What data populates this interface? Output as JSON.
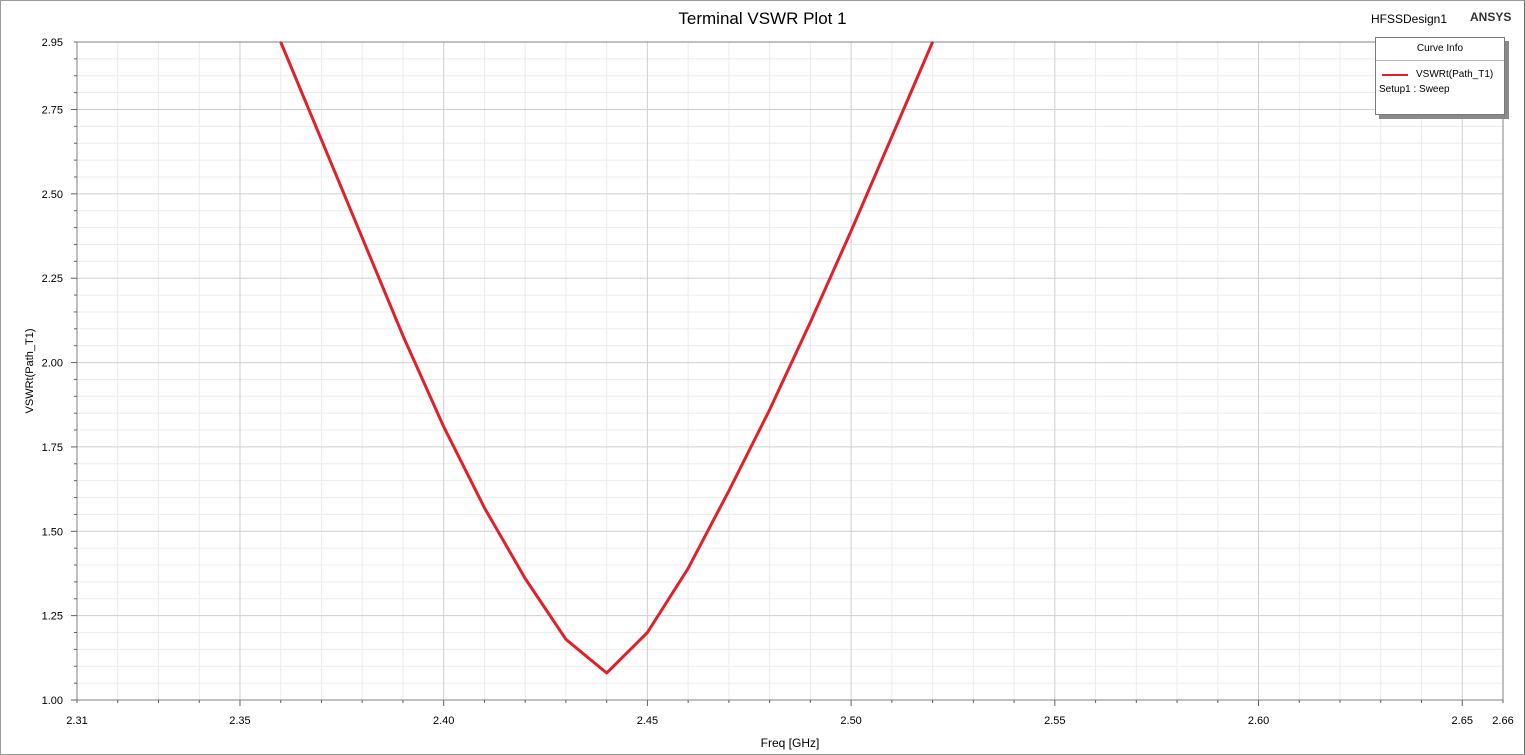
{
  "header": {
    "title": "Terminal VSWR Plot 1",
    "design_name": "HFSSDesign1",
    "brand": "ANSYS"
  },
  "legend": {
    "title": "Curve Info",
    "series_name": "VSWRt(Path_T1)",
    "setup": "Setup1 : Sweep"
  },
  "chart_data": {
    "type": "line",
    "title": "Terminal VSWR Plot 1",
    "xlabel": "Freq [GHz]",
    "ylabel": "VSWRt(Path_T1)",
    "xlim": [
      2.31,
      2.66
    ],
    "ylim": [
      1.0,
      2.95
    ],
    "x_ticks": [
      "2.31",
      "2.35",
      "2.40",
      "2.45",
      "2.50",
      "2.55",
      "2.60",
      "2.65",
      "2.66"
    ],
    "y_ticks": [
      "1.00",
      "1.25",
      "1.50",
      "1.75",
      "2.00",
      "2.25",
      "2.50",
      "2.75",
      "2.95"
    ],
    "grid": true,
    "legend_position": "top-right",
    "series": [
      {
        "name": "VSWRt(Path_T1)",
        "color": "#e0202a",
        "x": [
          2.36,
          2.37,
          2.38,
          2.39,
          2.4,
          2.41,
          2.42,
          2.43,
          2.44,
          2.45,
          2.46,
          2.47,
          2.48,
          2.49,
          2.5,
          2.51,
          2.52
        ],
        "y": [
          2.95,
          2.66,
          2.37,
          2.08,
          1.81,
          1.57,
          1.36,
          1.18,
          1.08,
          1.2,
          1.39,
          1.62,
          1.86,
          2.12,
          2.39,
          2.67,
          2.95
        ]
      }
    ]
  }
}
